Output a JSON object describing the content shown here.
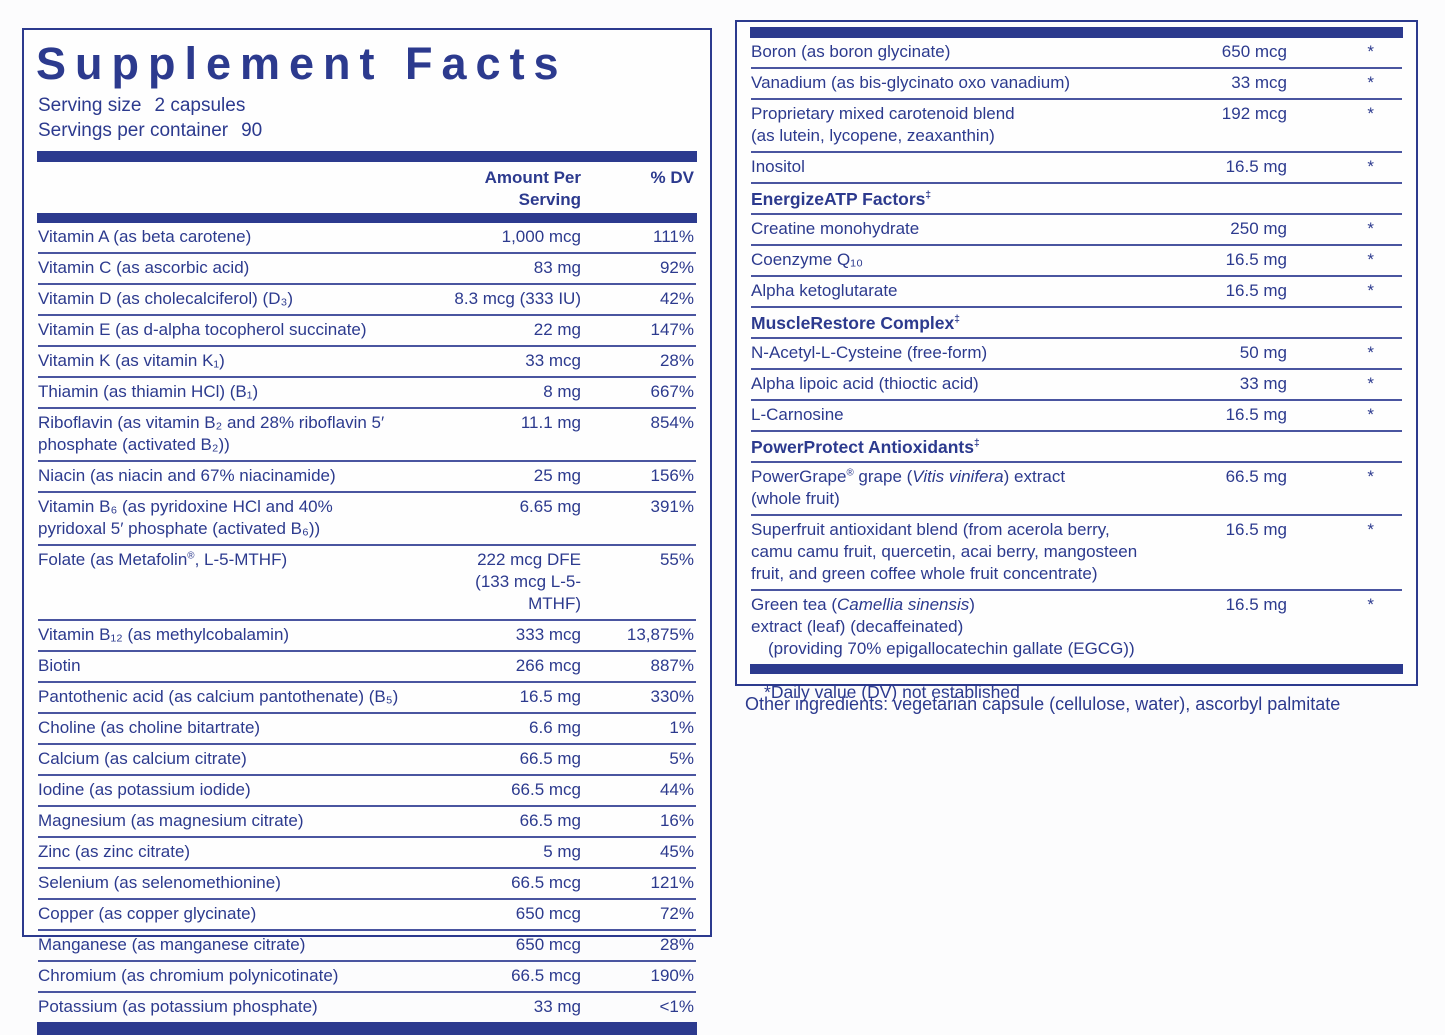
{
  "title": "Supplement Facts",
  "serving": {
    "size_label": "Serving size",
    "size_value": "2 capsules",
    "container_label": "Servings per container",
    "container_value": "90"
  },
  "columns": {
    "amount": "Amount Per Serving",
    "dv": "% DV"
  },
  "left_table": {
    "rows": [
      {
        "name": [
          "Vitamin A (as beta carotene)"
        ],
        "amount": "1,000 mcg",
        "dv": "111%"
      },
      {
        "name": [
          "Vitamin C (as ascorbic acid)"
        ],
        "amount": "83 mg",
        "dv": "92%"
      },
      {
        "name": [
          "Vitamin D (as cholecalciferol) (D₃)"
        ],
        "amount": "8.3 mcg (333 IU)",
        "dv": "42%"
      },
      {
        "name": [
          "Vitamin E (as d-alpha tocopherol succinate)"
        ],
        "amount": "22 mg",
        "dv": "147%"
      },
      {
        "name": [
          "Vitamin K (as vitamin K₁)"
        ],
        "amount": "33 mcg",
        "dv": "28%"
      },
      {
        "name": [
          "Thiamin (as thiamin HCl) (B₁)"
        ],
        "amount": "8 mg",
        "dv": "667%"
      },
      {
        "name": [
          "Riboflavin (as vitamin B₂ and 28% riboflavin 5′\nphosphate (activated B₂))"
        ],
        "amount": "11.1 mg",
        "dv": "854%"
      },
      {
        "name": [
          "Niacin (as niacin and 67% niacinamide)"
        ],
        "amount": "25 mg",
        "dv": "156%"
      },
      {
        "name": [
          "Vitamin B₆ (as pyridoxine HCl and 40%\npyridoxal 5′ phosphate (activated  B₆))"
        ],
        "amount": "6.65 mg",
        "dv": "391%"
      },
      {
        "name": [
          "Folate (as Metafolin",
          {
            "sup": "®"
          },
          ", L-5-MTHF)"
        ],
        "amount": "222 mcg DFE\n(133 mcg L-5-MTHF)",
        "dv": "55%"
      },
      {
        "name": [
          "Vitamin B₁₂ (as methylcobalamin)"
        ],
        "amount": "333 mcg",
        "dv": "13,875%"
      },
      {
        "name": [
          "Biotin"
        ],
        "amount": "266 mcg",
        "dv": "887%"
      },
      {
        "name": [
          "Pantothenic acid (as calcium pantothenate) (B₅)"
        ],
        "amount": "16.5 mg",
        "dv": "330%"
      },
      {
        "name": [
          "Choline (as choline bitartrate)"
        ],
        "amount": "6.6 mg",
        "dv": "1%"
      },
      {
        "name": [
          "Calcium (as calcium citrate)"
        ],
        "amount": "66.5 mg",
        "dv": "5%"
      },
      {
        "name": [
          "Iodine (as potassium iodide)"
        ],
        "amount": "66.5 mcg",
        "dv": "44%"
      },
      {
        "name": [
          "Magnesium (as magnesium citrate)"
        ],
        "amount": "66.5 mg",
        "dv": "16%"
      },
      {
        "name": [
          "Zinc (as zinc citrate)"
        ],
        "amount": "5 mg",
        "dv": "45%"
      },
      {
        "name": [
          "Selenium (as selenomethionine)"
        ],
        "amount": "66.5 mcg",
        "dv": "121%"
      },
      {
        "name": [
          "Copper (as copper glycinate)"
        ],
        "amount": "650 mcg",
        "dv": "72%"
      },
      {
        "name": [
          "Manganese (as manganese citrate)"
        ],
        "amount": "650 mcg",
        "dv": "28%"
      },
      {
        "name": [
          "Chromium (as chromium polynicotinate)"
        ],
        "amount": "66.5 mcg",
        "dv": "190%"
      },
      {
        "name": [
          "Potassium (as potassium phosphate)"
        ],
        "amount": "33 mg",
        "dv": "<1%"
      }
    ]
  },
  "right_table": {
    "items": [
      {
        "name": [
          "Boron (as boron glycinate)"
        ],
        "amount": "650 mcg",
        "dv": "*"
      },
      {
        "name": [
          "Vanadium (as bis-glycinato oxo vanadium)"
        ],
        "amount": "33 mcg",
        "dv": "*"
      },
      {
        "name": [
          "Proprietary mixed carotenoid blend\n(as lutein, lycopene, zeaxanthin)"
        ],
        "amount": "192 mcg",
        "dv": "*"
      },
      {
        "name": [
          "Inositol"
        ],
        "amount": "16.5 mg",
        "dv": "*"
      },
      {
        "section": "EnergizeATP Factors",
        "mark": "‡"
      },
      {
        "name": [
          "Creatine monohydrate"
        ],
        "amount": "250 mg",
        "dv": "*"
      },
      {
        "name": [
          "Coenzyme Q₁₀"
        ],
        "amount": "16.5 mg",
        "dv": "*"
      },
      {
        "name": [
          "Alpha ketoglutarate"
        ],
        "amount": "16.5 mg",
        "dv": "*"
      },
      {
        "section": "MuscleRestore Complex",
        "mark": "‡"
      },
      {
        "name": [
          "N-Acetyl-L-Cysteine (free-form)"
        ],
        "amount": "50 mg",
        "dv": "*"
      },
      {
        "name": [
          "Alpha lipoic acid (thioctic acid)"
        ],
        "amount": "33 mg",
        "dv": "*"
      },
      {
        "name": [
          "L-Carnosine"
        ],
        "amount": "16.5 mg",
        "dv": "*"
      },
      {
        "section": "PowerProtect Antioxidants",
        "mark": "‡"
      },
      {
        "name": [
          "PowerGrape",
          {
            "sup": "®"
          },
          " grape (",
          {
            "i": "Vitis vinifera"
          },
          ") extract\n(whole fruit)"
        ],
        "amount": "66.5 mg",
        "dv": "*"
      },
      {
        "name": [
          "Superfruit antioxidant blend (from acerola berry,\ncamu camu fruit, quercetin, acai berry, mangosteen\nfruit, and green coffee whole fruit concentrate)"
        ],
        "amount": "16.5 mg",
        "dv": "*"
      },
      {
        "name": [
          "Green tea (",
          {
            "i": "Camellia sinensis"
          },
          ")\nextract (leaf) (decaffeinated)\n  (providing 70% epigallocatechin gallate (EGCG))"
        ],
        "amount": "16.5 mg",
        "dv": "*"
      }
    ]
  },
  "footnote": {
    "symbol": "*",
    "text": "Daily value (DV) not established"
  },
  "other_ingredients": "Other ingredients: vegetarian capsule (cellulose, water), ascorbyl palmitate",
  "colors": {
    "navy": "#2c3a8e",
    "separator": "#4a55a0",
    "background": "#fcfcfd"
  }
}
